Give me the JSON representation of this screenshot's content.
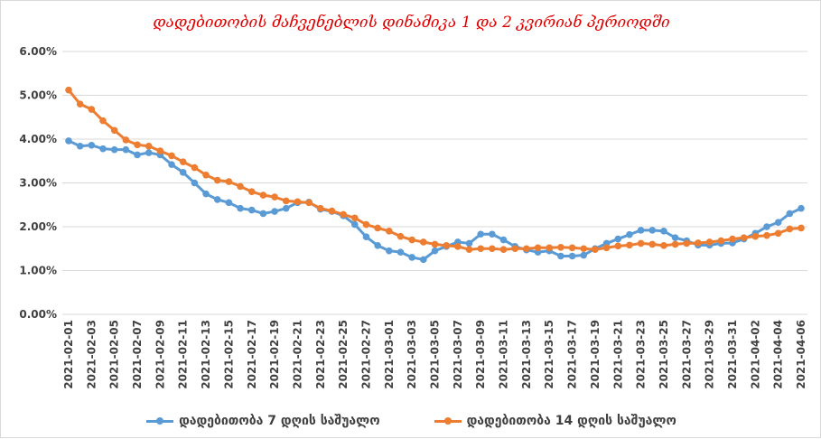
{
  "chart_data": {
    "type": "line",
    "title": "დადებითობის მაჩვენებლის დინამიკა 1 და 2 კვირიან პერიოდში",
    "xlabel": "",
    "ylabel": "",
    "ylim": [
      0,
      6
    ],
    "yticks": [
      "0.00%",
      "1.00%",
      "2.00%",
      "3.00%",
      "4.00%",
      "5.00%",
      "6.00%"
    ],
    "grid": true,
    "legend_position": "bottom",
    "x_start": "2021-02-01",
    "x_end": "2021-04-06",
    "xtick_every_days": 2,
    "series": [
      {
        "name": "დადებითობა 7 დღის საშუალო",
        "color": "#5b9bd5",
        "values": [
          3.96,
          3.84,
          3.86,
          3.78,
          3.76,
          3.76,
          3.64,
          3.69,
          3.64,
          3.42,
          3.24,
          3.0,
          2.75,
          2.62,
          2.55,
          2.42,
          2.38,
          2.3,
          2.35,
          2.42,
          2.55,
          2.56,
          2.4,
          2.35,
          2.25,
          2.05,
          1.77,
          1.57,
          1.45,
          1.42,
          1.3,
          1.25,
          1.45,
          1.55,
          1.65,
          1.62,
          1.83,
          1.83,
          1.7,
          1.55,
          1.47,
          1.42,
          1.45,
          1.33,
          1.33,
          1.35,
          1.5,
          1.62,
          1.72,
          1.82,
          1.92,
          1.92,
          1.9,
          1.75,
          1.68,
          1.58,
          1.58,
          1.62,
          1.63,
          1.72,
          1.85,
          2.0,
          2.1,
          2.3,
          2.42
        ]
      },
      {
        "name": "დადებითობა 14 დღის საშუალო",
        "color": "#ed7d31",
        "values": [
          5.12,
          4.8,
          4.68,
          4.42,
          4.2,
          3.98,
          3.87,
          3.84,
          3.73,
          3.62,
          3.48,
          3.35,
          3.18,
          3.06,
          3.03,
          2.92,
          2.8,
          2.72,
          2.68,
          2.59,
          2.57,
          2.55,
          2.42,
          2.36,
          2.28,
          2.2,
          2.05,
          1.97,
          1.9,
          1.78,
          1.7,
          1.65,
          1.6,
          1.57,
          1.55,
          1.48,
          1.5,
          1.5,
          1.48,
          1.5,
          1.5,
          1.52,
          1.52,
          1.53,
          1.52,
          1.5,
          1.48,
          1.52,
          1.56,
          1.58,
          1.62,
          1.6,
          1.57,
          1.6,
          1.62,
          1.63,
          1.65,
          1.68,
          1.72,
          1.75,
          1.78,
          1.8,
          1.85,
          1.95,
          1.97
        ]
      }
    ]
  }
}
